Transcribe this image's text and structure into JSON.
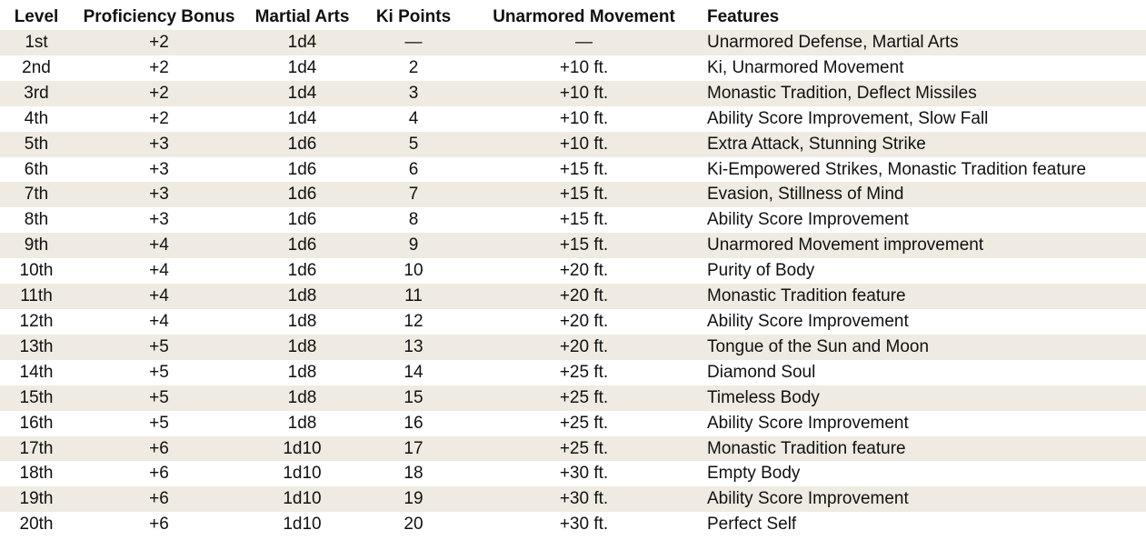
{
  "table": {
    "headers": {
      "level": "Level",
      "proficiency": "Proficiency Bonus",
      "martial_arts": "Martial Arts",
      "ki_points": "Ki Points",
      "movement": "Unarmored Movement",
      "features": "Features"
    },
    "rows": [
      {
        "level": "1st",
        "proficiency": "+2",
        "martial_arts": "1d4",
        "ki_points": "—",
        "movement": "—",
        "features": "Unarmored Defense, Martial Arts"
      },
      {
        "level": "2nd",
        "proficiency": "+2",
        "martial_arts": "1d4",
        "ki_points": "2",
        "movement": "+10 ft.",
        "features": "Ki, Unarmored Movement"
      },
      {
        "level": "3rd",
        "proficiency": "+2",
        "martial_arts": "1d4",
        "ki_points": "3",
        "movement": "+10 ft.",
        "features": "Monastic Tradition, Deflect Missiles"
      },
      {
        "level": "4th",
        "proficiency": "+2",
        "martial_arts": "1d4",
        "ki_points": "4",
        "movement": "+10 ft.",
        "features": "Ability Score Improvement, Slow Fall"
      },
      {
        "level": "5th",
        "proficiency": "+3",
        "martial_arts": "1d6",
        "ki_points": "5",
        "movement": "+10 ft.",
        "features": "Extra Attack, Stunning Strike"
      },
      {
        "level": "6th",
        "proficiency": "+3",
        "martial_arts": "1d6",
        "ki_points": "6",
        "movement": "+15 ft.",
        "features": "Ki-Empowered Strikes, Monastic Tradition feature"
      },
      {
        "level": "7th",
        "proficiency": "+3",
        "martial_arts": "1d6",
        "ki_points": "7",
        "movement": "+15 ft.",
        "features": "Evasion, Stillness of Mind"
      },
      {
        "level": "8th",
        "proficiency": "+3",
        "martial_arts": "1d6",
        "ki_points": "8",
        "movement": "+15 ft.",
        "features": "Ability Score Improvement"
      },
      {
        "level": "9th",
        "proficiency": "+4",
        "martial_arts": "1d6",
        "ki_points": "9",
        "movement": "+15 ft.",
        "features": "Unarmored Movement improvement"
      },
      {
        "level": "10th",
        "proficiency": "+4",
        "martial_arts": "1d6",
        "ki_points": "10",
        "movement": "+20 ft.",
        "features": "Purity of Body"
      },
      {
        "level": "11th",
        "proficiency": "+4",
        "martial_arts": "1d8",
        "ki_points": "11",
        "movement": "+20 ft.",
        "features": "Monastic Tradition feature"
      },
      {
        "level": "12th",
        "proficiency": "+4",
        "martial_arts": "1d8",
        "ki_points": "12",
        "movement": "+20 ft.",
        "features": "Ability Score Improvement"
      },
      {
        "level": "13th",
        "proficiency": "+5",
        "martial_arts": "1d8",
        "ki_points": "13",
        "movement": "+20 ft.",
        "features": "Tongue of the Sun and Moon"
      },
      {
        "level": "14th",
        "proficiency": "+5",
        "martial_arts": "1d8",
        "ki_points": "14",
        "movement": "+25 ft.",
        "features": "Diamond Soul"
      },
      {
        "level": "15th",
        "proficiency": "+5",
        "martial_arts": "1d8",
        "ki_points": "15",
        "movement": "+25 ft.",
        "features": "Timeless Body"
      },
      {
        "level": "16th",
        "proficiency": "+5",
        "martial_arts": "1d8",
        "ki_points": "16",
        "movement": "+25 ft.",
        "features": "Ability Score Improvement"
      },
      {
        "level": "17th",
        "proficiency": "+6",
        "martial_arts": "1d10",
        "ki_points": "17",
        "movement": "+25 ft.",
        "features": "Monastic Tradition feature"
      },
      {
        "level": "18th",
        "proficiency": "+6",
        "martial_arts": "1d10",
        "ki_points": "18",
        "movement": "+30 ft.",
        "features": "Empty Body"
      },
      {
        "level": "19th",
        "proficiency": "+6",
        "martial_arts": "1d10",
        "ki_points": "19",
        "movement": "+30 ft.",
        "features": "Ability Score Improvement"
      },
      {
        "level": "20th",
        "proficiency": "+6",
        "martial_arts": "1d10",
        "ki_points": "20",
        "movement": "+30 ft.",
        "features": "Perfect Self"
      }
    ]
  },
  "colors": {
    "row_band": "#efebe2",
    "row_plain": "#ffffff",
    "text": "#111111"
  }
}
